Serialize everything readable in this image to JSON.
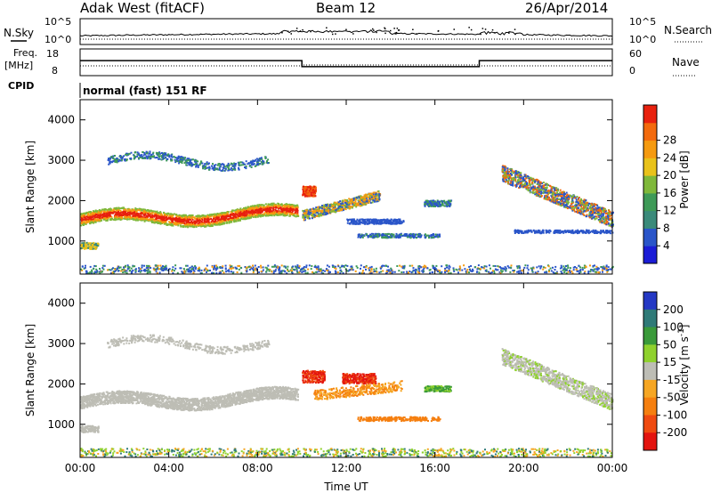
{
  "header": {
    "station": "Adak West (fitACF)",
    "beam": "Beam 12",
    "date": "26/Apr/2014"
  },
  "strips": {
    "nsky": {
      "label": "N.Sky",
      "left_ticks": [
        "10^5",
        "10^0"
      ],
      "right_ticks": [
        "10^5",
        "10^0"
      ],
      "right_label": "N.Search",
      "right_legend_line": "dotted"
    },
    "freq": {
      "label_line1": "Freq.",
      "label_line2": "[MHz]",
      "left_ticks": [
        "18",
        "8"
      ],
      "right_ticks": [
        "60",
        "0"
      ],
      "right_label": "Nave",
      "freq_steps": [
        {
          "start_h": 0,
          "end_h": 10,
          "mhz": 13.5
        },
        {
          "start_h": 10,
          "end_h": 18,
          "mhz": 10.5
        },
        {
          "start_h": 18,
          "end_h": 24,
          "mhz": 13.5
        }
      ],
      "nave_steps": [
        {
          "start_h": 0,
          "end_h": 10,
          "count": 22
        },
        {
          "start_h": 10,
          "end_h": 18,
          "count": 24
        },
        {
          "start_h": 18,
          "end_h": 24,
          "count": 22
        }
      ]
    },
    "cpid": {
      "label": "CPID",
      "text": "normal (fast) 151 RF"
    }
  },
  "chart_data": [
    {
      "type": "heatmap",
      "panel": "power",
      "ylabel": "Slant Range [km]",
      "xlabel": "",
      "ylim": [
        180,
        4500
      ],
      "yticks": [
        "1000",
        "2000",
        "3000",
        "4000"
      ],
      "xlim_hours": [
        0,
        24
      ],
      "colorbar": {
        "label": "Power [dB]",
        "ticks": [
          "4",
          "8",
          "12",
          "16",
          "20",
          "24",
          "28"
        ],
        "range": [
          0,
          32
        ],
        "colors": [
          "#1b1cd6",
          "#2a55c9",
          "#3a8a7a",
          "#3e9a57",
          "#7fb83a",
          "#e9c21a",
          "#f59a10",
          "#f36a0d",
          "#e8210e"
        ]
      },
      "features": [
        {
          "name": "main scatter band",
          "start_h": 0,
          "end_h": 9.8,
          "range_start_km": 1600,
          "range_end_km": 1800,
          "peak_db": 28
        },
        {
          "name": "upper band",
          "start_h": 1.2,
          "end_h": 8.5,
          "range_km": 3000,
          "peak_db": 12
        },
        {
          "name": "low patch",
          "start_h": 0,
          "end_h": 0.8,
          "range_km": 900,
          "peak_db": 20
        },
        {
          "name": "midday echo",
          "start_h": 10,
          "end_h": 13.5,
          "range_km": 2000,
          "peak_db": 24
        },
        {
          "name": "afternoon echo",
          "start_h": 15.5,
          "end_h": 16.7,
          "range_km": 1950,
          "peak_db": 16
        },
        {
          "name": "evening band",
          "start_h": 19,
          "end_h": 24,
          "range_km": 1700,
          "peak_db": 24
        }
      ]
    },
    {
      "type": "heatmap",
      "panel": "velocity",
      "ylabel": "Slant Range [km]",
      "xlabel": "Time UT",
      "ylim": [
        180,
        4500
      ],
      "yticks": [
        "1000",
        "2000",
        "3000",
        "4000"
      ],
      "xticks": [
        "00:00",
        "04:00",
        "08:00",
        "12:00",
        "16:00",
        "20:00",
        "00:00"
      ],
      "xlim_hours": [
        0,
        24
      ],
      "colorbar": {
        "label": "Velocity [m s",
        "label_sup": "-1",
        "label_end": "]",
        "ticks": [
          "200",
          "100",
          "50",
          "15",
          "-15",
          "-50",
          "-100",
          "-200"
        ],
        "colors": [
          "#2438c4",
          "#2f7a78",
          "#3a9a3a",
          "#8fd12d",
          "#bdbdb5",
          "#f6a623",
          "#f57f0f",
          "#ef4a10",
          "#e3140f"
        ]
      },
      "features": [
        {
          "name": "ground scatter band",
          "start_h": 0,
          "end_h": 9.8,
          "range_start_km": 1600,
          "range_end_km": 1800,
          "velocity": "ground"
        },
        {
          "name": "midday flow",
          "start_h": 10,
          "end_h": 13.5,
          "range_km": 2100,
          "velocity_mps": -200
        },
        {
          "name": "afternoon positive flow",
          "start_h": 15.5,
          "end_h": 16.7,
          "range_km": 1900,
          "velocity_mps": 50
        }
      ]
    }
  ]
}
